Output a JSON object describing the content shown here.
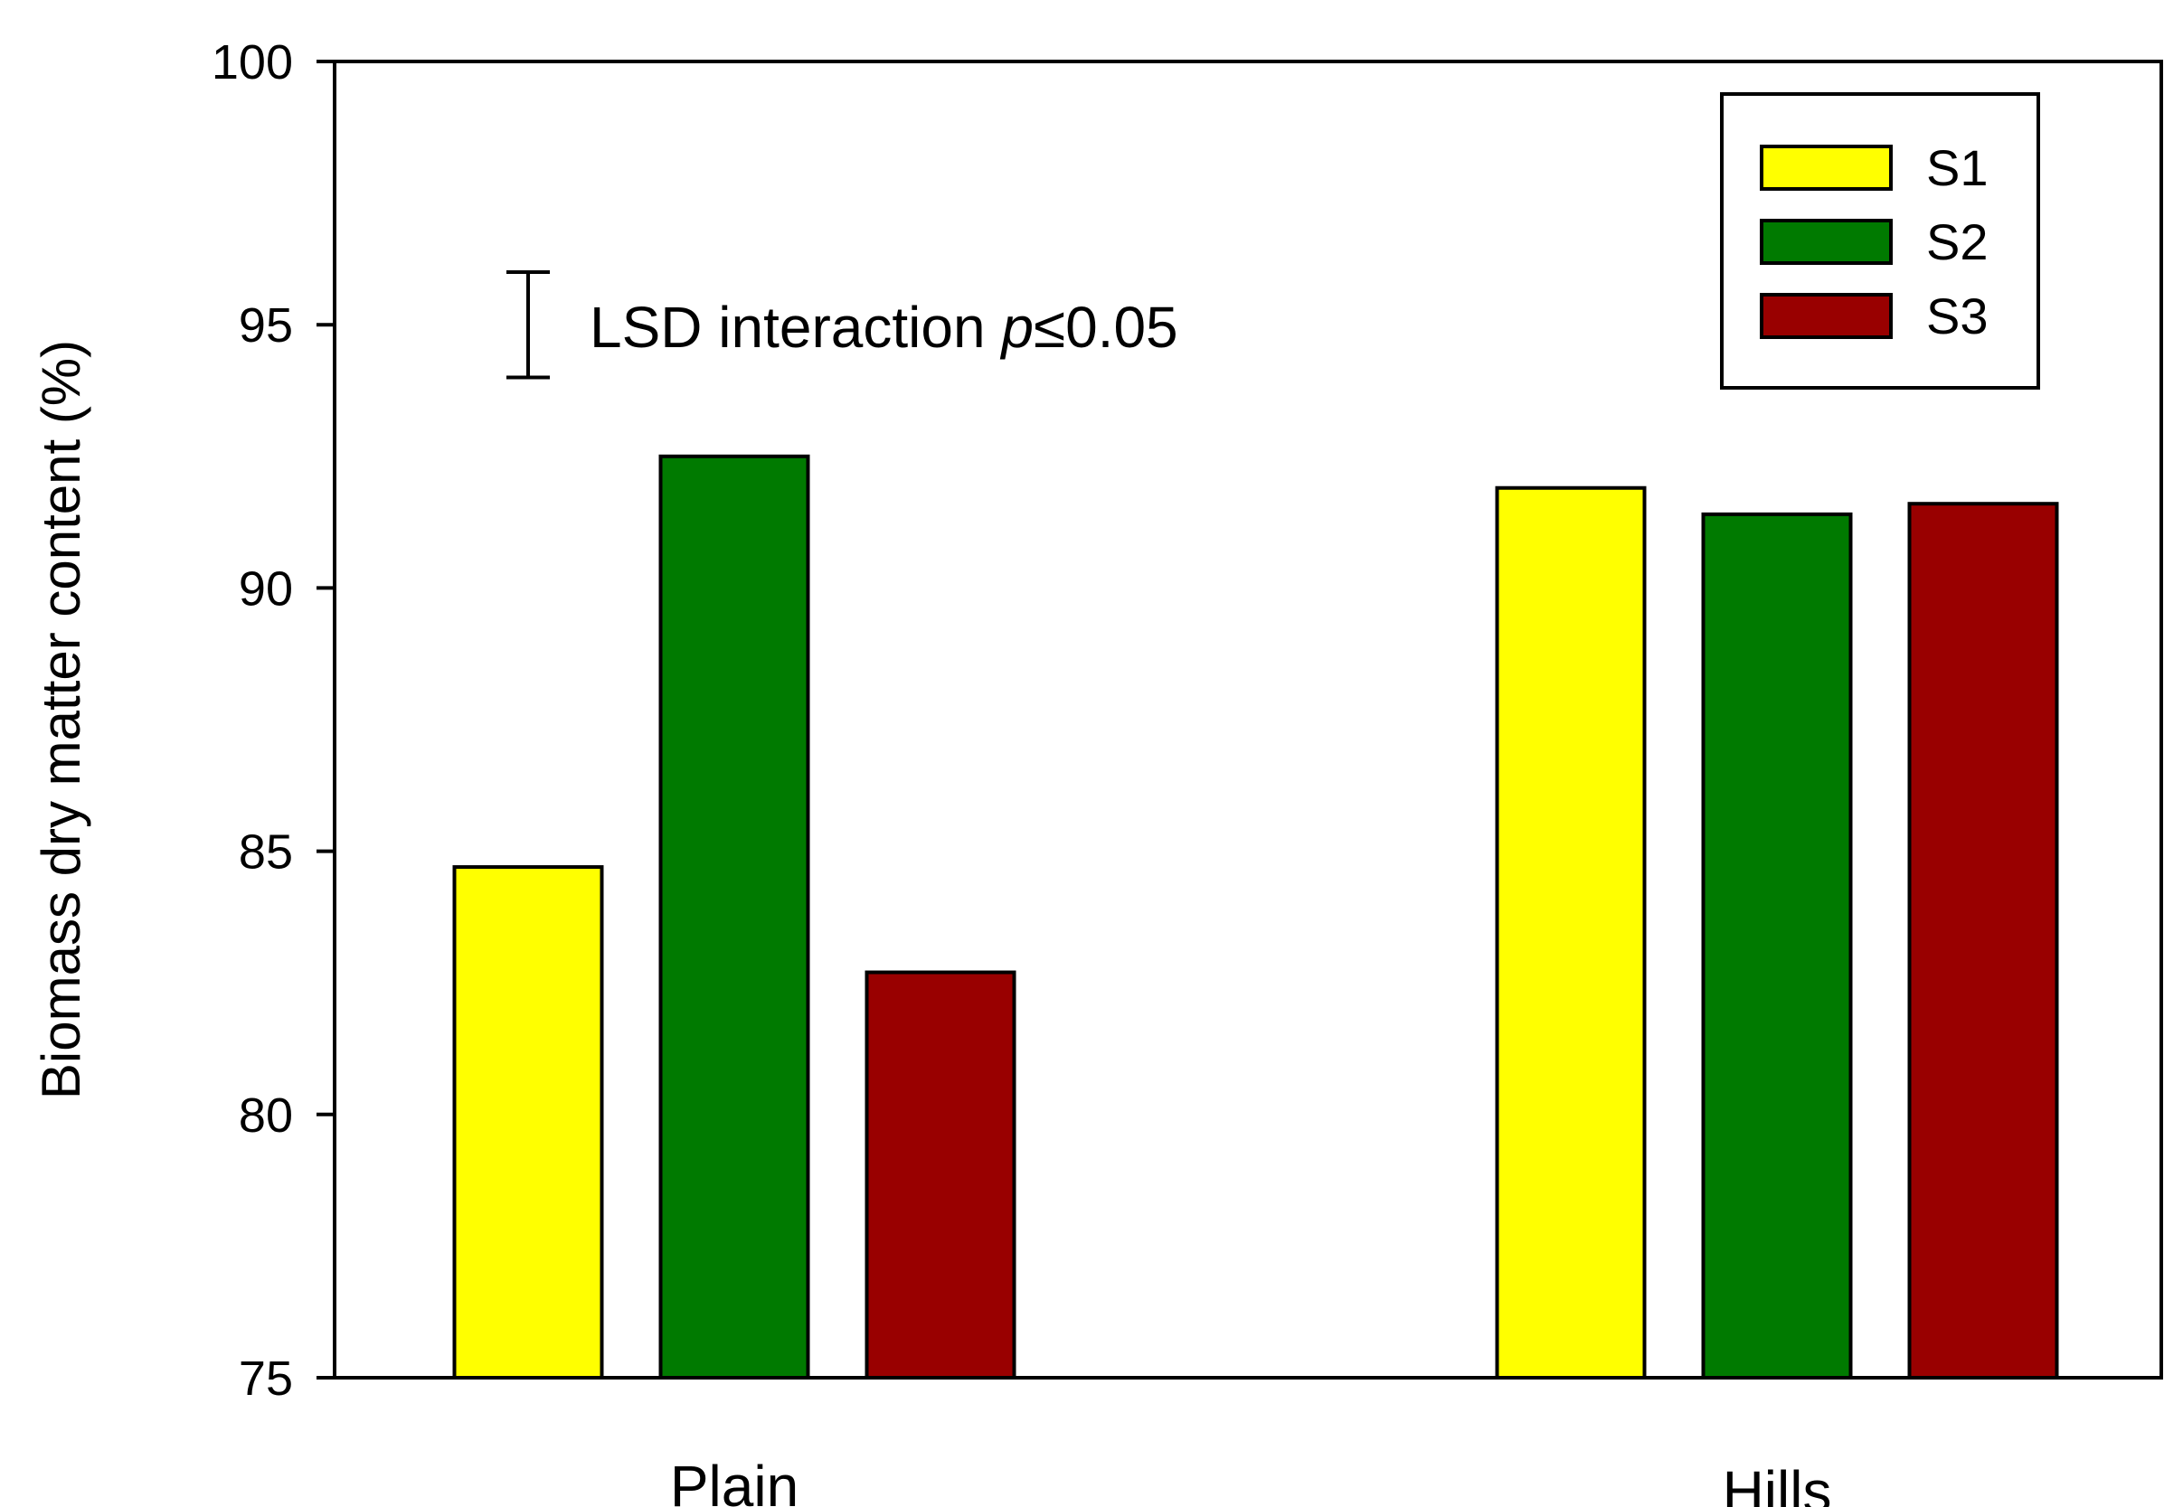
{
  "chart_data": {
    "type": "bar",
    "categories": [
      "Plain",
      "Hills"
    ],
    "series": [
      {
        "name": "S1",
        "color": "#ffff00",
        "values": [
          84.7,
          91.9
        ]
      },
      {
        "name": "S2",
        "color": "#007a00",
        "values": [
          92.5,
          91.4
        ]
      },
      {
        "name": "S3",
        "color": "#990000",
        "values": [
          82.7,
          91.6
        ]
      }
    ],
    "ylabel": "Biomass dry matter content (%)",
    "xlabel": "",
    "ylim": [
      75,
      100
    ],
    "yticks": [
      75,
      80,
      85,
      90,
      95,
      100
    ],
    "grid": false,
    "legend_position": "top-right",
    "annotation": {
      "prefix": "LSD interaction ",
      "symbol": "p",
      "relation": "≤",
      "threshold": "0.05",
      "lsd_range": [
        94,
        96
      ]
    }
  }
}
